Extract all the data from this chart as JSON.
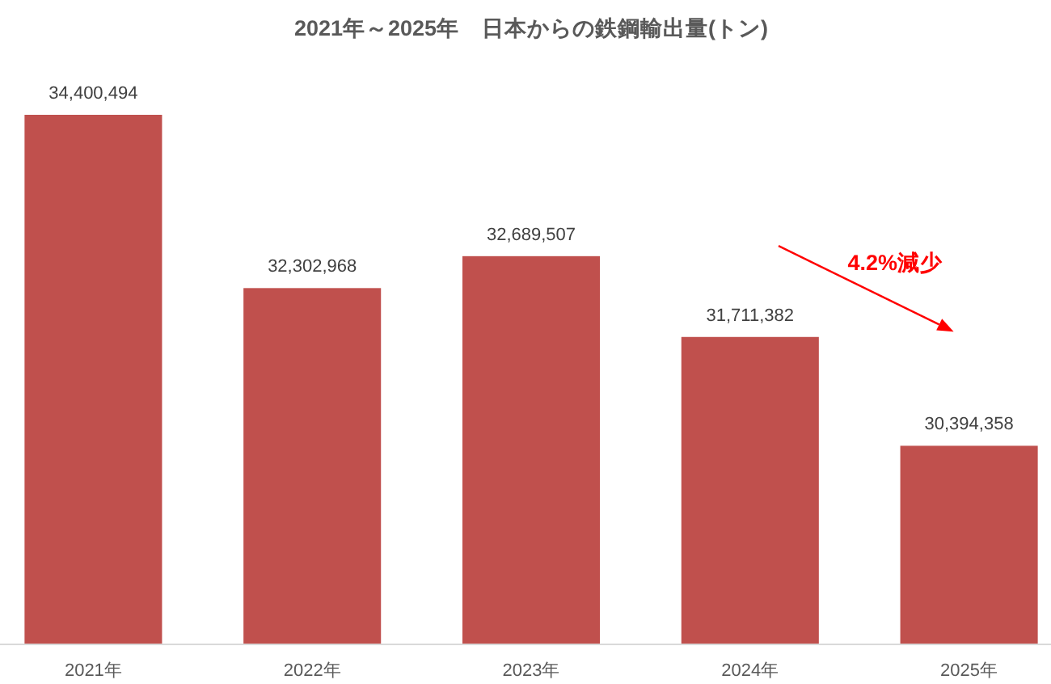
{
  "chart_data": {
    "type": "bar",
    "title": "2021年～2025年　日本からの鉄鋼輸出量(トン)",
    "categories": [
      "2021年",
      "2022年",
      "2023年",
      "2024年",
      "2025年"
    ],
    "values": [
      34400494,
      32302968,
      32689507,
      31711382,
      30394358
    ],
    "value_labels": [
      "34,400,494",
      "32,302,968",
      "32,689,507",
      "31,711,382",
      "30,394,358"
    ],
    "color": "#c0504d",
    "ylim": [
      28000000,
      34400494
    ],
    "tick_labels": "x",
    "annotations": [
      "4.2%減少"
    ]
  }
}
